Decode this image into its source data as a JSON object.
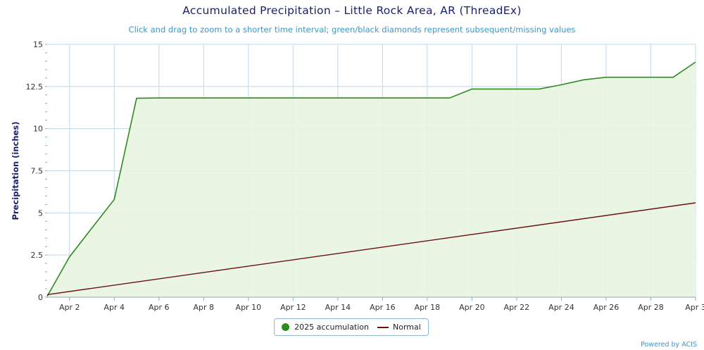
{
  "chart_data": {
    "type": "line",
    "title": "Accumulated Precipitation – Little Rock Area, AR (ThreadEx)",
    "subtitle": "Click and drag to zoom to a shorter time interval; green/black diamonds represent subsequent/missing values",
    "xlabel": "",
    "ylabel": "Precipitation (inches)",
    "ylim": [
      0,
      15
    ],
    "yticks": [
      "0",
      "2.5",
      "5",
      "7.5",
      "10",
      "12.5",
      "15"
    ],
    "xlim": [
      1,
      30
    ],
    "xticks": [
      {
        "day": 2,
        "label": "Apr 2"
      },
      {
        "day": 4,
        "label": "Apr 4"
      },
      {
        "day": 6,
        "label": "Apr 6"
      },
      {
        "day": 8,
        "label": "Apr 8"
      },
      {
        "day": 10,
        "label": "Apr 10"
      },
      {
        "day": 12,
        "label": "Apr 12"
      },
      {
        "day": 14,
        "label": "Apr 14"
      },
      {
        "day": 16,
        "label": "Apr 16"
      },
      {
        "day": 18,
        "label": "Apr 18"
      },
      {
        "day": 20,
        "label": "Apr 20"
      },
      {
        "day": 22,
        "label": "Apr 22"
      },
      {
        "day": 24,
        "label": "Apr 24"
      },
      {
        "day": 26,
        "label": "Apr 26"
      },
      {
        "day": 28,
        "label": "Apr 28"
      },
      {
        "day": 30,
        "label": "Apr 3"
      }
    ],
    "grid": true,
    "legend_position": "bottom-center",
    "series": [
      {
        "name": "2025 accumulation",
        "color": "#2e8b20",
        "fill": "#e8f5e0",
        "x": [
          1,
          2,
          3,
          4,
          5,
          6,
          7,
          8,
          9,
          10,
          11,
          12,
          13,
          14,
          15,
          16,
          17,
          18,
          19,
          20,
          21,
          22,
          23,
          24,
          25,
          26,
          27,
          28,
          29,
          30
        ],
        "values": [
          0.05,
          2.4,
          4.1,
          5.8,
          11.8,
          11.82,
          11.82,
          11.82,
          11.82,
          11.82,
          11.82,
          11.82,
          11.82,
          11.82,
          11.82,
          11.82,
          11.82,
          11.82,
          11.82,
          12.35,
          12.35,
          12.35,
          12.35,
          12.6,
          12.9,
          13.05,
          13.05,
          13.05,
          13.05,
          13.95
        ]
      },
      {
        "name": "Normal",
        "color": "#6b1010",
        "x": [
          1,
          30
        ],
        "values": [
          0.15,
          5.6
        ]
      }
    ]
  },
  "credit": "Powered by ACIS"
}
